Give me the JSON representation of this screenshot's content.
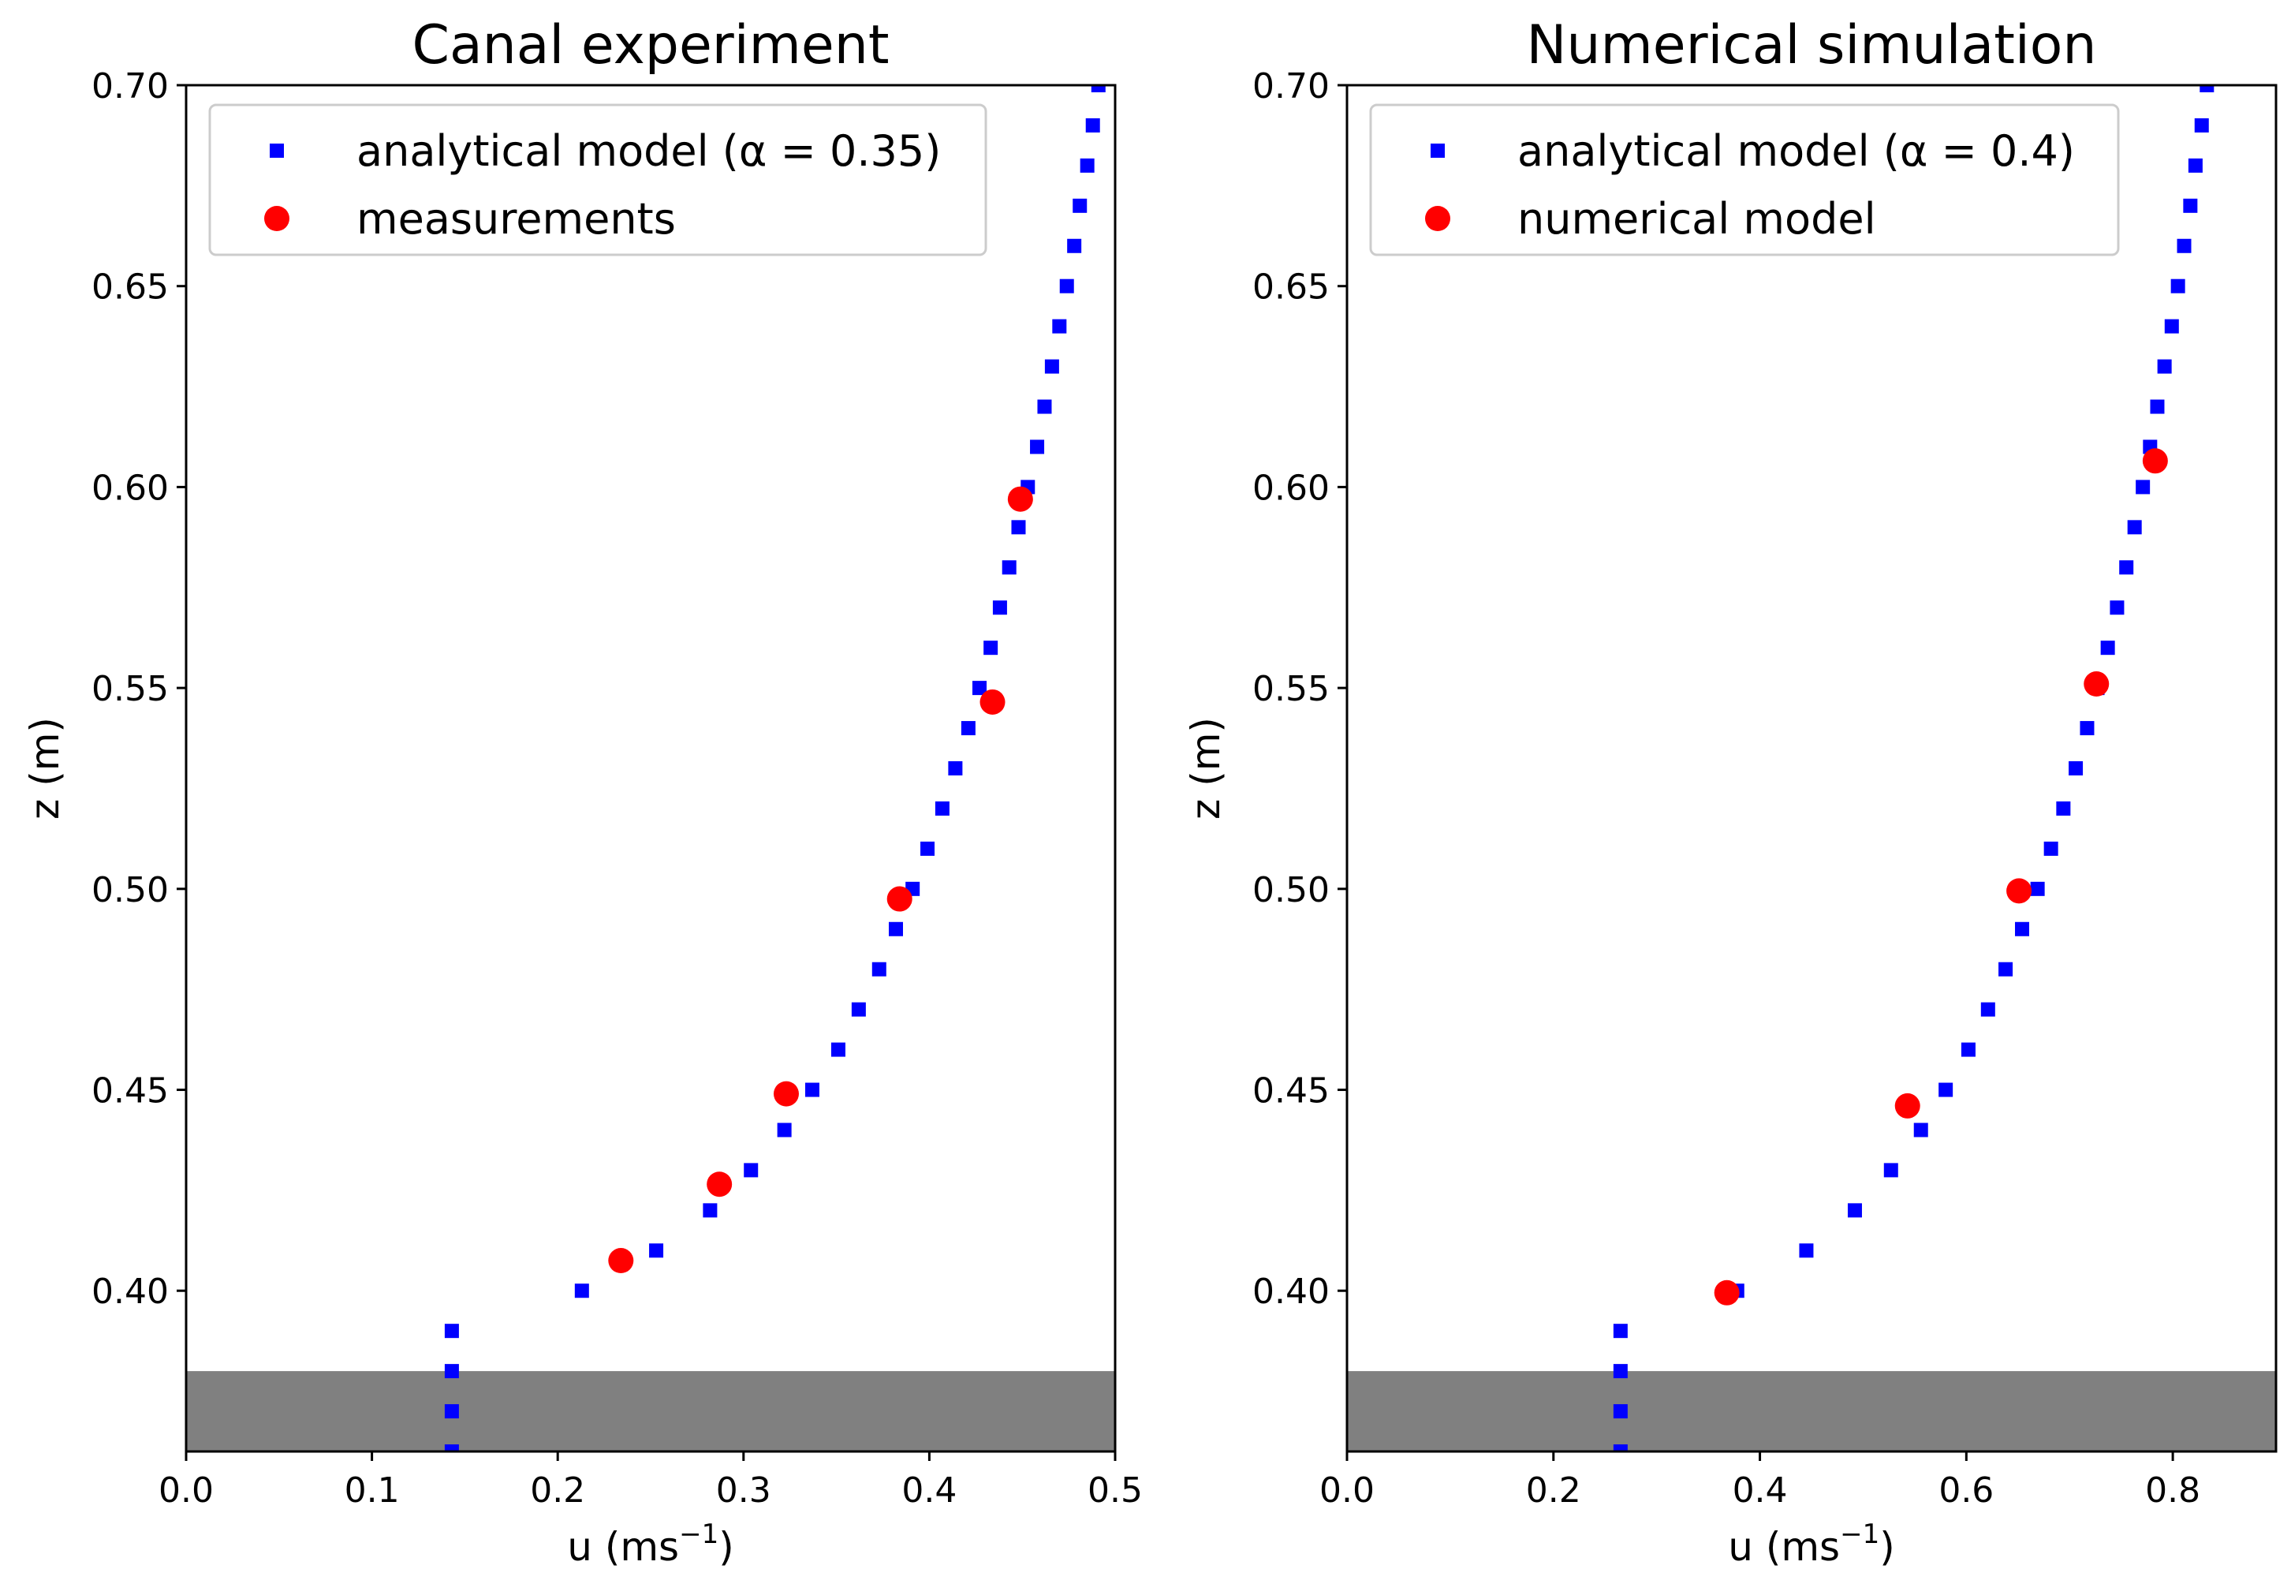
{
  "chart_data": [
    {
      "type": "scatter",
      "title": "Canal experiment",
      "xlabel": "u (ms",
      "xlabel_exp": "−1",
      "xlabel_close": ")",
      "ylabel": "z (m)",
      "xlim": [
        0.0,
        0.5
      ],
      "ylim": [
        0.36,
        0.7
      ],
      "xticks": [
        0.0,
        0.1,
        0.2,
        0.3,
        0.4,
        0.5
      ],
      "xtick_labels": [
        "0.0",
        "0.1",
        "0.2",
        "0.3",
        "0.4",
        "0.5"
      ],
      "yticks": [
        0.4,
        0.45,
        0.5,
        0.55,
        0.6,
        0.65,
        0.7
      ],
      "ytick_labels": [
        "0.40",
        "0.45",
        "0.50",
        "0.55",
        "0.60",
        "0.65",
        "0.70"
      ],
      "shaded_band": {
        "y_from": 0.36,
        "y_to": 0.38,
        "color": "#808080"
      },
      "legend": {
        "position": "top-left",
        "entries": [
          "analytical model (α = 0.35)",
          "measurements"
        ]
      },
      "series": [
        {
          "name": "analytical model (α = 0.35)",
          "marker": "square",
          "color": "#0000ff",
          "points": [
            [
              0.143,
              0.36
            ],
            [
              0.143,
              0.37
            ],
            [
              0.143,
              0.38
            ],
            [
              0.143,
              0.39
            ],
            [
              0.213,
              0.4
            ],
            [
              0.253,
              0.41
            ],
            [
              0.282,
              0.42
            ],
            [
              0.304,
              0.43
            ],
            [
              0.322,
              0.44
            ],
            [
              0.337,
              0.45
            ],
            [
              0.351,
              0.46
            ],
            [
              0.362,
              0.47
            ],
            [
              0.373,
              0.48
            ],
            [
              0.382,
              0.49
            ],
            [
              0.391,
              0.5
            ],
            [
              0.399,
              0.51
            ],
            [
              0.407,
              0.52
            ],
            [
              0.414,
              0.53
            ],
            [
              0.421,
              0.54
            ],
            [
              0.427,
              0.55
            ],
            [
              0.433,
              0.56
            ],
            [
              0.438,
              0.57
            ],
            [
              0.443,
              0.58
            ],
            [
              0.448,
              0.59
            ],
            [
              0.453,
              0.6
            ],
            [
              0.458,
              0.61
            ],
            [
              0.462,
              0.62
            ],
            [
              0.466,
              0.63
            ],
            [
              0.47,
              0.64
            ],
            [
              0.474,
              0.65
            ],
            [
              0.478,
              0.66
            ],
            [
              0.481,
              0.67
            ],
            [
              0.485,
              0.68
            ],
            [
              0.488,
              0.69
            ],
            [
              0.491,
              0.7
            ]
          ]
        },
        {
          "name": "measurements",
          "marker": "circle",
          "color": "#ff0000",
          "points": [
            [
              0.234,
              0.4075
            ],
            [
              0.287,
              0.4265
            ],
            [
              0.323,
              0.449
            ],
            [
              0.384,
              0.4975
            ],
            [
              0.434,
              0.5465
            ],
            [
              0.449,
              0.597
            ]
          ]
        }
      ]
    },
    {
      "type": "scatter",
      "title": "Numerical simulation",
      "xlabel": "u (ms",
      "xlabel_exp": "−1",
      "xlabel_close": ")",
      "ylabel": "z (m)",
      "xlim": [
        0.0,
        0.9
      ],
      "ylim": [
        0.36,
        0.7
      ],
      "xticks": [
        0.0,
        0.2,
        0.4,
        0.6,
        0.8
      ],
      "xtick_labels": [
        "0.0",
        "0.2",
        "0.4",
        "0.6",
        "0.8"
      ],
      "yticks": [
        0.4,
        0.45,
        0.5,
        0.55,
        0.6,
        0.65,
        0.7
      ],
      "ytick_labels": [
        "0.40",
        "0.45",
        "0.50",
        "0.55",
        "0.60",
        "0.65",
        "0.70"
      ],
      "shaded_band": {
        "y_from": 0.36,
        "y_to": 0.38,
        "color": "#808080"
      },
      "legend": {
        "position": "top-left",
        "entries": [
          "analytical model (α = 0.4)",
          "numerical model"
        ]
      },
      "series": [
        {
          "name": "analytical model (α = 0.4)",
          "marker": "square",
          "color": "#0000ff",
          "points": [
            [
              0.265,
              0.36
            ],
            [
              0.265,
              0.37
            ],
            [
              0.265,
              0.38
            ],
            [
              0.265,
              0.39
            ],
            [
              0.378,
              0.4
            ],
            [
              0.445,
              0.41
            ],
            [
              0.492,
              0.42
            ],
            [
              0.527,
              0.43
            ],
            [
              0.556,
              0.44
            ],
            [
              0.58,
              0.45
            ],
            [
              0.602,
              0.46
            ],
            [
              0.621,
              0.47
            ],
            [
              0.638,
              0.48
            ],
            [
              0.654,
              0.49
            ],
            [
              0.669,
              0.5
            ],
            [
              0.682,
              0.51
            ],
            [
              0.694,
              0.52
            ],
            [
              0.706,
              0.53
            ],
            [
              0.717,
              0.54
            ],
            [
              0.727,
              0.55
            ],
            [
              0.737,
              0.56
            ],
            [
              0.746,
              0.57
            ],
            [
              0.755,
              0.58
            ],
            [
              0.763,
              0.59
            ],
            [
              0.771,
              0.6
            ],
            [
              0.778,
              0.61
            ],
            [
              0.785,
              0.62
            ],
            [
              0.792,
              0.63
            ],
            [
              0.799,
              0.64
            ],
            [
              0.805,
              0.65
            ],
            [
              0.811,
              0.66
            ],
            [
              0.817,
              0.67
            ],
            [
              0.822,
              0.68
            ],
            [
              0.828,
              0.69
            ],
            [
              0.833,
              0.7
            ]
          ]
        },
        {
          "name": "numerical model",
          "marker": "circle",
          "color": "#ff0000",
          "points": [
            [
              0.368,
              0.3995
            ],
            [
              0.543,
              0.446
            ],
            [
              0.651,
              0.4995
            ],
            [
              0.726,
              0.551
            ],
            [
              0.783,
              0.6065
            ]
          ]
        }
      ]
    }
  ]
}
